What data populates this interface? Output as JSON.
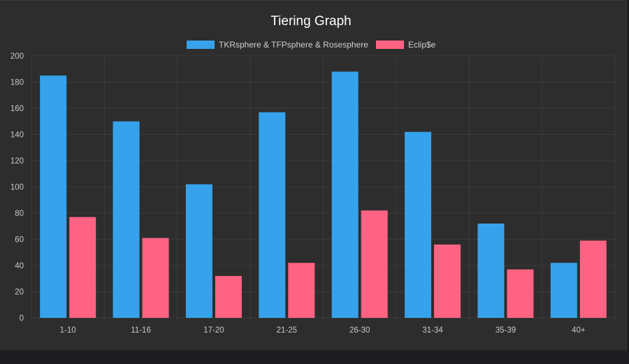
{
  "chart_data": {
    "type": "bar",
    "title": "Tiering Graph",
    "categories": [
      "1-10",
      "11-16",
      "17-20",
      "21-25",
      "26-30",
      "31-34",
      "35-39",
      "40+"
    ],
    "series": [
      {
        "name": "TKRsphere & TFPsphere & Rosesphere",
        "color": "#36a2eb",
        "values": [
          185,
          150,
          102,
          157,
          188,
          142,
          72,
          42
        ]
      },
      {
        "name": "Eclip$e",
        "color": "#ff6384",
        "values": [
          77,
          61,
          32,
          42,
          82,
          56,
          37,
          59
        ]
      }
    ],
    "ylim": [
      0,
      200
    ],
    "yticks": [
      0,
      20,
      40,
      60,
      80,
      100,
      120,
      140,
      160,
      180,
      200
    ],
    "grid": true,
    "legend_position": "top-center",
    "colors": {
      "background": "#2d2d2d",
      "grid": "#3b3b3b",
      "text": "#c8c8c8"
    }
  }
}
